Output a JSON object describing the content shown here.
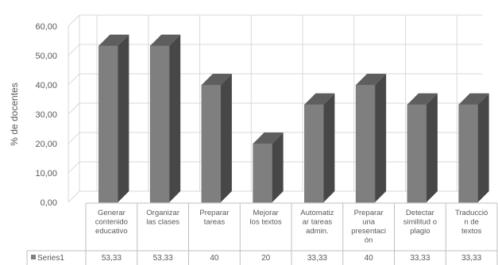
{
  "chart_data": {
    "type": "bar",
    "style": "3d-column-with-data-table",
    "ylabel": "% de docentes",
    "ylim": [
      0,
      60
    ],
    "ytick_labels": [
      "0,00",
      "10,00",
      "20,00",
      "30,00",
      "40,00",
      "50,00",
      "60,00"
    ],
    "grid": true,
    "categories": [
      [
        "Generar",
        "contenido",
        "educativo"
      ],
      [
        "Organizar",
        "las clases"
      ],
      [
        "Preparar",
        "tareas"
      ],
      [
        "Mejorar",
        "los textos"
      ],
      [
        "Automatiz",
        "ar tareas",
        "admin."
      ],
      [
        "Preparar",
        "una",
        "presentaci",
        "ón"
      ],
      [
        "Detectar",
        "similitud o",
        "plagio"
      ],
      [
        "Traducció",
        "n de",
        "textos"
      ]
    ],
    "series": [
      {
        "name": "Series1",
        "values": [
          53.33,
          53.33,
          40,
          20,
          33.33,
          40,
          33.33,
          33.33
        ],
        "table_labels": [
          "53,33",
          "53,33",
          "40",
          "20",
          "33,33",
          "40",
          "33,33",
          "33,33"
        ]
      }
    ],
    "colors": {
      "bar_front": "#7f7f7f",
      "bar_side": "#474747",
      "bar_top": "#5e5e5e",
      "grid": "#d9d9d9",
      "text": "#595959",
      "legend_swatch": "#7f7f7f"
    }
  }
}
